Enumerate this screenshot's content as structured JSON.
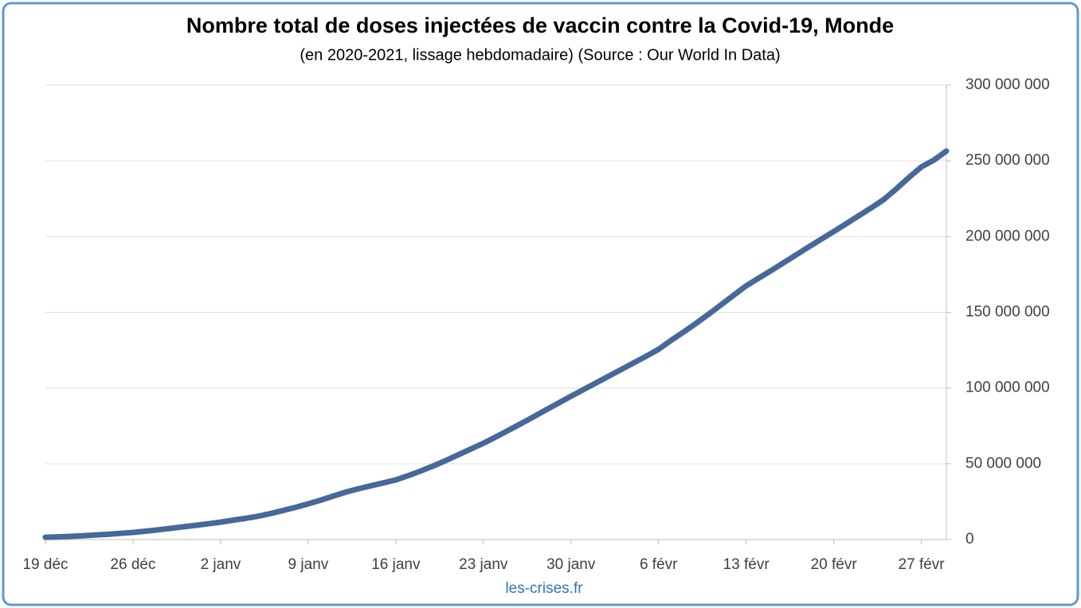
{
  "chart_data": {
    "type": "line",
    "title": "Nombre total de doses injectées de vaccin contre la Covid-19, Monde",
    "subtitle": "(en 2020-2021, lissage hebdomadaire) (Source : Our World In Data)",
    "source": "les-crises.fr",
    "categories": [
      "19 déc",
      null,
      null,
      null,
      null,
      null,
      null,
      "26 déc",
      null,
      null,
      null,
      null,
      null,
      null,
      "2 janv",
      null,
      null,
      null,
      null,
      null,
      null,
      "9 janv",
      null,
      null,
      null,
      null,
      null,
      null,
      "16 janv",
      null,
      null,
      null,
      null,
      null,
      null,
      "23 janv",
      null,
      null,
      null,
      null,
      null,
      null,
      "30 janv",
      null,
      null,
      null,
      null,
      null,
      null,
      "6 févr",
      null,
      null,
      null,
      null,
      null,
      null,
      "13 févr",
      null,
      null,
      null,
      null,
      null,
      null,
      "20 févr",
      null,
      null,
      null,
      null,
      null,
      null,
      "27 févr",
      null,
      null
    ],
    "series": [
      {
        "name": "Monde",
        "color": "#46689a",
        "values": [
          1500000,
          1800000,
          2100000,
          2500000,
          3000000,
          3500000,
          4100000,
          4700000,
          5500000,
          6400000,
          7400000,
          8400000,
          9400000,
          10400000,
          11500000,
          12800000,
          14000000,
          15400000,
          17200000,
          19200000,
          21300000,
          23600000,
          26000000,
          28700000,
          31300000,
          33500000,
          35500000,
          37400000,
          39400000,
          42200000,
          45300000,
          48600000,
          52200000,
          56000000,
          59800000,
          63600000,
          67800000,
          72100000,
          76500000,
          81000000,
          85600000,
          90100000,
          94600000,
          99000000,
          103400000,
          107800000,
          112200000,
          116600000,
          121000000,
          125600000,
          131500000,
          137000000,
          142800000,
          148800000,
          155000000,
          161300000,
          167500000,
          172600000,
          177600000,
          182800000,
          188000000,
          193200000,
          198300000,
          203400000,
          208500000,
          213800000,
          219000000,
          224500000,
          231500000,
          239000000,
          246000000,
          250500000,
          256500000
        ]
      }
    ],
    "ylim": [
      0,
      300000000
    ],
    "yticks": [
      0,
      {
        "value": 50000000,
        "label": "50 000 000"
      },
      {
        "value": 100000000,
        "label": "100 000 000"
      },
      {
        "value": 150000000,
        "label": "150 000 000"
      },
      {
        "value": 200000000,
        "label": "200 000 000"
      },
      {
        "value": 250000000,
        "label": "250 000 000"
      },
      {
        "value": 300000000,
        "label": "300 000 000"
      }
    ],
    "grid": true
  }
}
